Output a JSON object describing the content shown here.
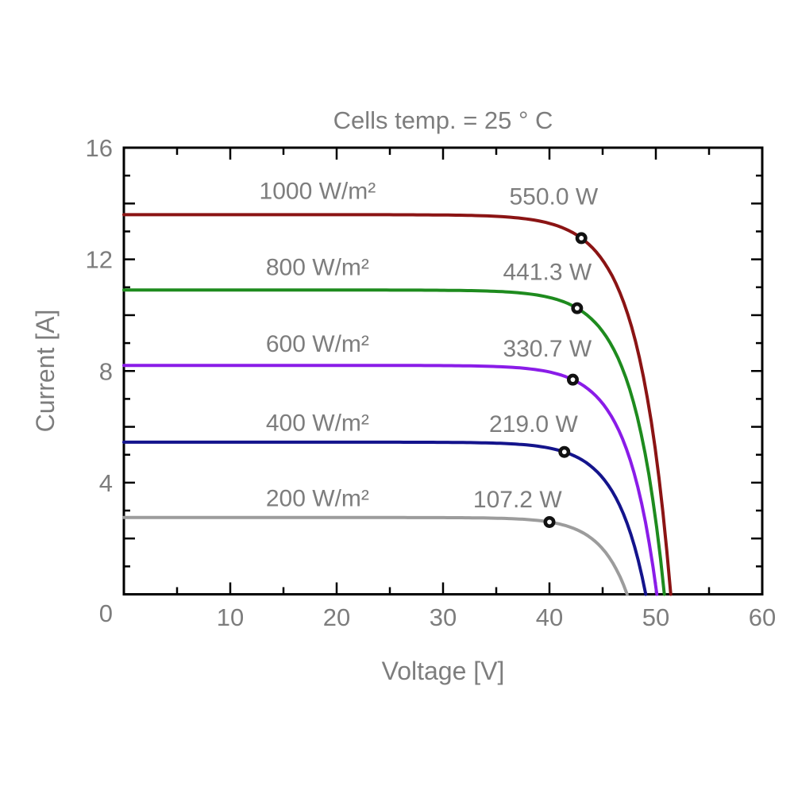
{
  "page": {
    "background": "#FFFFFF"
  },
  "chart_data": {
    "type": "line",
    "title": "Cells temp. = 25 ° C",
    "xlabel": "Voltage [V]",
    "ylabel": "Current [A]",
    "xlim": [
      0,
      60
    ],
    "ylim": [
      0,
      16
    ],
    "grid": false,
    "legend_position": "none",
    "x_ticks": {
      "label_values": [
        0,
        10,
        20,
        30,
        40,
        50,
        60
      ],
      "minor_step": 5,
      "major_step": 10
    },
    "y_ticks": {
      "label_values": [
        4,
        8,
        12,
        16
      ],
      "minor_step": 1,
      "major_step": 2
    },
    "origin_label": "0",
    "styles": {
      "text_color": "#7D7D7D",
      "axis_color": "#000000",
      "marker_fill": "#FFFFFF",
      "marker_stroke": "#121212"
    },
    "series": [
      {
        "id": "1000",
        "irradiance_label": "1000 W/m²",
        "power_label": "550.0 W",
        "color": "#8B1414",
        "isc_a": 13.6,
        "voc_v": 51.4,
        "vmp_v": 43.0,
        "imp_a": 12.76,
        "pmax_w": 550.0,
        "label_pos": {
          "v": 18.2,
          "i": 14.45
        },
        "power_pos": {
          "v": 40.4,
          "i": 14.25
        }
      },
      {
        "id": "800",
        "irradiance_label": "800 W/m²",
        "power_label": "441.3 W",
        "color": "#1E8B1E",
        "isc_a": 10.9,
        "voc_v": 50.8,
        "vmp_v": 42.6,
        "imp_a": 10.25,
        "pmax_w": 441.3,
        "label_pos": {
          "v": 18.2,
          "i": 11.72
        },
        "power_pos": {
          "v": 39.8,
          "i": 11.55
        }
      },
      {
        "id": "600",
        "irradiance_label": "600 W/m²",
        "power_label": "330.7 W",
        "color": "#8A1CE8",
        "isc_a": 8.2,
        "voc_v": 50.1,
        "vmp_v": 42.2,
        "imp_a": 7.69,
        "pmax_w": 330.7,
        "label_pos": {
          "v": 18.2,
          "i": 8.97
        },
        "power_pos": {
          "v": 39.8,
          "i": 8.8
        }
      },
      {
        "id": "400",
        "irradiance_label": "400 W/m²",
        "power_label": "219.0 W",
        "color": "#14148C",
        "isc_a": 5.45,
        "voc_v": 49.05,
        "vmp_v": 41.4,
        "imp_a": 5.1,
        "pmax_w": 219.0,
        "label_pos": {
          "v": 18.2,
          "i": 6.15
        },
        "power_pos": {
          "v": 38.5,
          "i": 6.1
        }
      },
      {
        "id": "200",
        "irradiance_label": "200 W/m²",
        "power_label": "107.2 W",
        "color": "#9C9C9C",
        "isc_a": 2.75,
        "voc_v": 47.3,
        "vmp_v": 40.0,
        "imp_a": 2.59,
        "pmax_w": 107.2,
        "label_pos": {
          "v": 18.2,
          "i": 3.44
        },
        "power_pos": {
          "v": 37.0,
          "i": 3.4
        }
      }
    ]
  }
}
